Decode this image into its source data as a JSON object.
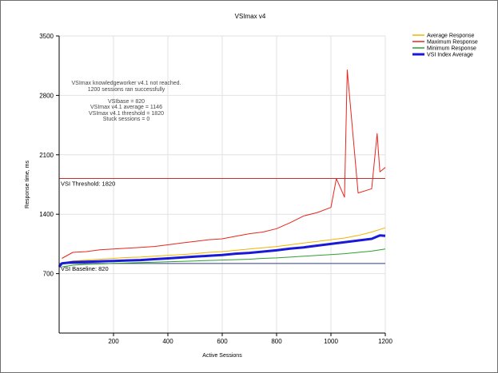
{
  "chart_data": {
    "type": "line",
    "title": "VSImax v4",
    "xlabel": "Active Sessions",
    "ylabel": "Response time, ms",
    "xlim": [
      0,
      1200
    ],
    "ylim": [
      0,
      3500
    ],
    "x_ticks": [
      200,
      400,
      600,
      800,
      1000,
      1200
    ],
    "y_ticks": [
      700,
      1400,
      2100,
      2800,
      3500
    ],
    "grid": true,
    "legend_position": "top-right",
    "series": [
      {
        "name": "Average Response",
        "color": "#f2b300",
        "x": [
          10,
          50,
          100,
          150,
          200,
          250,
          300,
          350,
          400,
          450,
          500,
          550,
          600,
          650,
          700,
          750,
          800,
          850,
          900,
          950,
          1000,
          1050,
          1100,
          1150,
          1200
        ],
        "values": [
          820,
          850,
          860,
          870,
          880,
          890,
          895,
          905,
          915,
          925,
          935,
          950,
          960,
          975,
          990,
          1005,
          1020,
          1040,
          1060,
          1080,
          1100,
          1120,
          1150,
          1190,
          1240
        ]
      },
      {
        "name": "Maximum Response",
        "color": "#e8261e",
        "x": [
          10,
          50,
          100,
          150,
          200,
          250,
          300,
          350,
          400,
          450,
          500,
          550,
          600,
          650,
          700,
          750,
          800,
          850,
          900,
          950,
          1000,
          1020,
          1050,
          1060,
          1100,
          1150,
          1170,
          1180,
          1200
        ],
        "values": [
          880,
          950,
          960,
          980,
          990,
          1000,
          1010,
          1020,
          1040,
          1060,
          1080,
          1100,
          1110,
          1140,
          1170,
          1190,
          1230,
          1300,
          1380,
          1420,
          1480,
          1820,
          1600,
          3100,
          1650,
          1700,
          2350,
          1900,
          1950
        ]
      },
      {
        "name": "Minimum Response",
        "color": "#2ea02e",
        "x": [
          10,
          50,
          100,
          150,
          200,
          250,
          300,
          350,
          400,
          450,
          500,
          550,
          600,
          650,
          700,
          750,
          800,
          850,
          900,
          950,
          1000,
          1050,
          1100,
          1150,
          1200
        ],
        "values": [
          780,
          800,
          810,
          815,
          820,
          825,
          830,
          835,
          840,
          845,
          850,
          855,
          860,
          865,
          870,
          880,
          885,
          895,
          905,
          915,
          925,
          935,
          950,
          965,
          990
        ]
      },
      {
        "name": "VSI Index Average",
        "color": "#1a1ad6",
        "x": [
          0,
          10,
          50,
          100,
          150,
          200,
          250,
          300,
          350,
          400,
          450,
          500,
          550,
          600,
          650,
          700,
          750,
          800,
          850,
          900,
          950,
          1000,
          1050,
          1100,
          1150,
          1180,
          1200
        ],
        "values": [
          780,
          820,
          835,
          840,
          845,
          850,
          855,
          860,
          870,
          880,
          890,
          900,
          910,
          920,
          935,
          945,
          960,
          975,
          995,
          1010,
          1030,
          1050,
          1070,
          1090,
          1110,
          1150,
          1146
        ]
      }
    ],
    "reference_lines": [
      {
        "label": "VSI Threshold: 1820",
        "value": 1820,
        "color": "#c83030"
      },
      {
        "label": "VSI Baseline: 820",
        "value": 820,
        "color": "#2c3e8c"
      }
    ],
    "annotations": [
      "VSImax knowledgeworker v4.1 not reached.",
      "1200 sessions ran successfully",
      "VSIbase = 820",
      "VSImax v4.1 average = 1146",
      "VSImax v4.1 threshold = 1820",
      "Stuck sessions = 0"
    ]
  }
}
